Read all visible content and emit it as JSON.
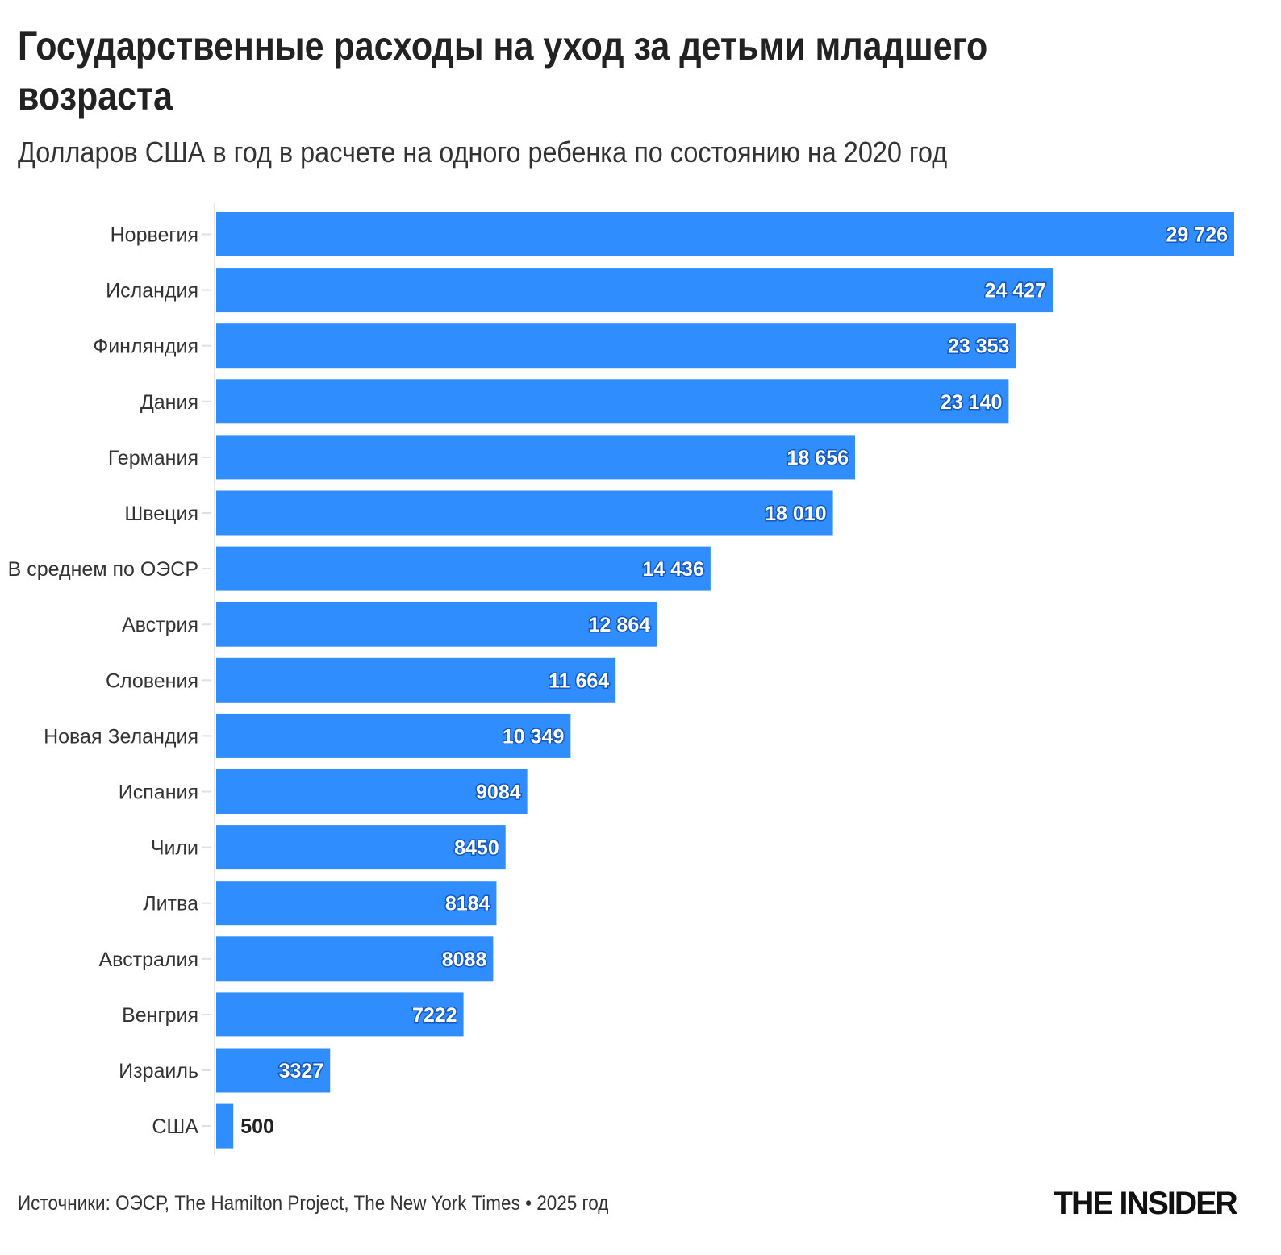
{
  "title": "Государственные расходы на уход за детьми младшего возраста",
  "subtitle": "Долларов США в год в расчете на одного ребенка по состоянию на 2020 год",
  "source": "Источники: ОЭСР, The Hamilton Project, The New York Times • 2025 год",
  "logo": "THE INSIDER",
  "colors": {
    "bar": "#2f8dfd",
    "label_outline": "#1558c0",
    "text": "#333333"
  },
  "chart_data": {
    "type": "bar",
    "orientation": "horizontal",
    "categories": [
      "Норвегия",
      "Исландия",
      "Финляндия",
      "Дания",
      "Германия",
      "Швеция",
      "В среднем по ОЭСР",
      "Австрия",
      "Словения",
      "Новая Зеландия",
      "Испания",
      "Чили",
      "Литва",
      "Австралия",
      "Венгрия",
      "Израиль",
      "США"
    ],
    "values": [
      29726,
      24427,
      23353,
      23140,
      18656,
      18010,
      14436,
      12864,
      11664,
      10349,
      9084,
      8450,
      8184,
      8088,
      7222,
      3327,
      500
    ],
    "data_labels": [
      "29 726",
      "24 427",
      "23 353",
      "23 140",
      "18 656",
      "18 010",
      "14 436",
      "12 864",
      "11 664",
      "10 349",
      "9084",
      "8450",
      "8184",
      "8088",
      "7222",
      "3327",
      "500"
    ],
    "xlim": [
      0,
      29726
    ],
    "grid": false,
    "legend": "none"
  }
}
